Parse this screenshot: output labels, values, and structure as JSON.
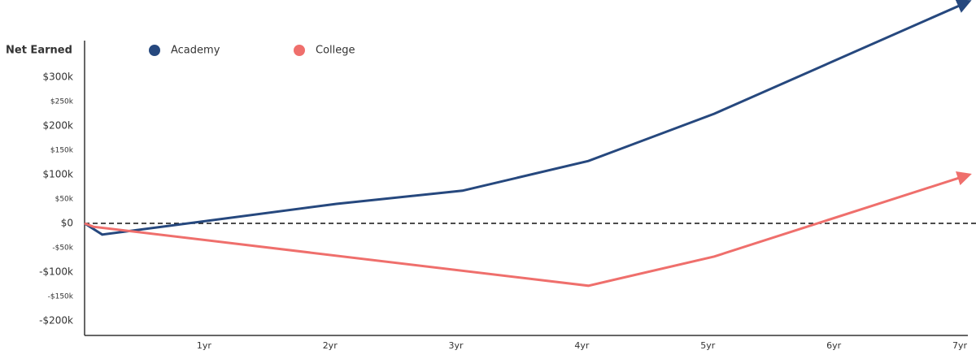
{
  "chart_data": {
    "type": "line",
    "y_label": "Net Earned",
    "series": [
      {
        "name": "Academy",
        "color": "#26487e",
        "x": [
          0,
          0.14,
          2,
          3,
          4,
          5,
          7
        ],
        "values": [
          0,
          -23,
          40,
          67,
          128,
          225,
          453
        ]
      },
      {
        "name": "College",
        "color": "#ef6f6c",
        "x": [
          0,
          0.07,
          4,
          5,
          7
        ],
        "values": [
          0,
          -7,
          -128,
          -68,
          98
        ]
      }
    ],
    "xlim": [
      0,
      7
    ],
    "xticks": [
      {
        "value": 1,
        "label": "1yr"
      },
      {
        "value": 2,
        "label": "2yr"
      },
      {
        "value": 3,
        "label": "3yr"
      },
      {
        "value": 4,
        "label": "4yr"
      },
      {
        "value": 5,
        "label": "5yr"
      },
      {
        "value": 6,
        "label": "6yr"
      },
      {
        "value": 7,
        "label": "7yr"
      }
    ],
    "ylim": [
      -230,
      375
    ],
    "yticks": [
      {
        "value": 300,
        "label": "$300k"
      },
      {
        "value": 250,
        "label": "$250k"
      },
      {
        "value": 200,
        "label": "$200k"
      },
      {
        "value": 150,
        "label": "$150k"
      },
      {
        "value": 100,
        "label": "$100k"
      },
      {
        "value": 50,
        "label": "$50k"
      },
      {
        "value": 0,
        "label": "$0"
      },
      {
        "value": -50,
        "label": "-$50k"
      },
      {
        "value": -100,
        "label": "-$100k"
      },
      {
        "value": -150,
        "label": "-$150k"
      },
      {
        "value": -200,
        "label": "-$200k"
      }
    ]
  }
}
